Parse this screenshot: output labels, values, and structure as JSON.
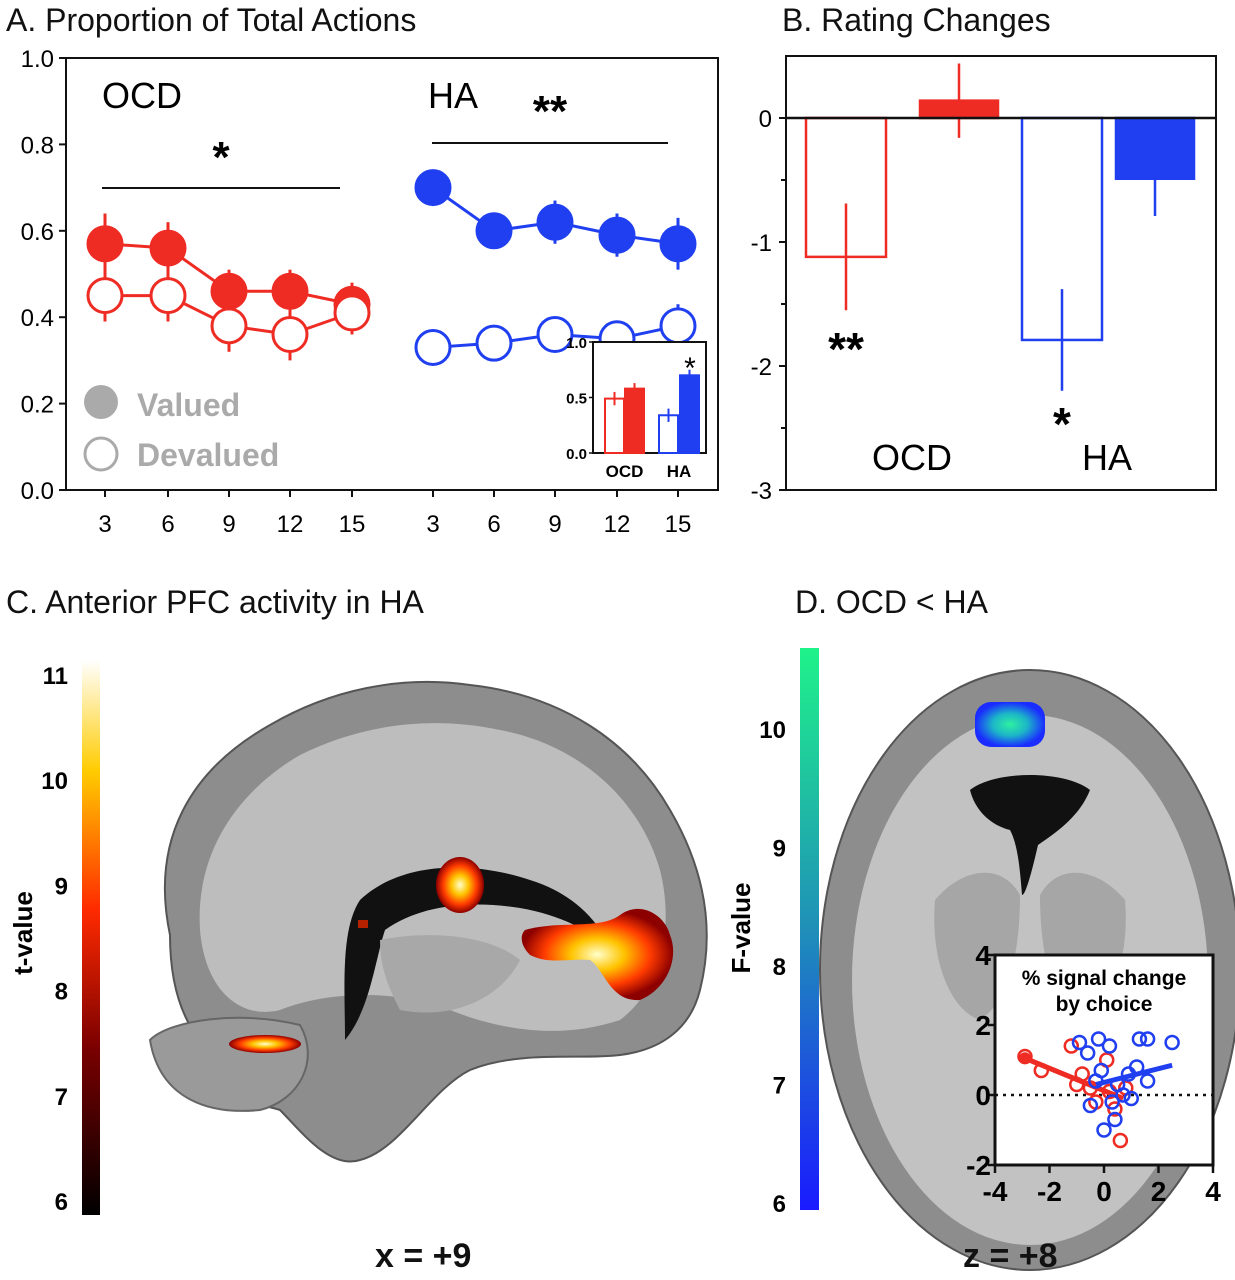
{
  "panel_titles": {
    "a": "A. Proportion of Total Actions",
    "b": "B. Rating Changes",
    "c": "C. Anterior PFC activity in HA",
    "d": "D. OCD < HA"
  },
  "colors": {
    "ocd": "#ee2c24",
    "ha": "#1f3ff0",
    "gray": "#aaaaaa"
  },
  "chart_data": [
    {
      "type": "line",
      "title": "A. Proportion of Total Actions",
      "groups": [
        {
          "label": "OCD",
          "significance": "*"
        },
        {
          "label": "HA",
          "significance": "**"
        }
      ],
      "x": [
        3,
        6,
        9,
        12,
        15
      ],
      "xticks": [
        "3",
        "6",
        "9",
        "12",
        "15"
      ],
      "ylim": [
        0,
        1
      ],
      "yticks": [
        "0.0",
        "0.2",
        "0.4",
        "0.6",
        "0.8",
        "1.0"
      ],
      "legend": {
        "valued": "Valued",
        "devalued": "Devalued",
        "placement": "bottom-left"
      },
      "series": [
        {
          "group": "OCD",
          "condition": "valued",
          "values": [
            0.57,
            0.56,
            0.46,
            0.46,
            0.43
          ],
          "err": [
            0.07,
            0.06,
            0.05,
            0.05,
            0.05
          ]
        },
        {
          "group": "OCD",
          "condition": "devalued",
          "values": [
            0.45,
            0.45,
            0.38,
            0.36,
            0.41
          ],
          "err": [
            0.06,
            0.06,
            0.06,
            0.06,
            0.05
          ]
        },
        {
          "group": "HA",
          "condition": "valued",
          "values": [
            0.7,
            0.6,
            0.62,
            0.59,
            0.57
          ],
          "err": [
            0.04,
            0.04,
            0.05,
            0.05,
            0.06
          ]
        },
        {
          "group": "HA",
          "condition": "devalued",
          "values": [
            0.33,
            0.34,
            0.36,
            0.35,
            0.38
          ],
          "err": [
            0.04,
            0.04,
            0.04,
            0.04,
            0.05
          ]
        }
      ],
      "inset": {
        "type": "bar",
        "categories": [
          "OCD",
          "HA"
        ],
        "ylim": [
          0,
          1
        ],
        "yticks": [
          "0.0",
          "0.5",
          "1.0"
        ],
        "series": [
          {
            "condition": "devalued",
            "values": [
              0.49,
              0.34
            ],
            "err": [
              0.06,
              0.06
            ]
          },
          {
            "condition": "valued",
            "values": [
              0.58,
              0.7
            ],
            "err": [
              0.05,
              0.05
            ]
          }
        ],
        "significance": "*"
      }
    },
    {
      "type": "bar",
      "title": "B. Rating Changes",
      "categories": [
        "OCD",
        "HA"
      ],
      "ylim": [
        -3,
        0.5
      ],
      "yticks": [
        "0",
        "-1",
        "-2",
        "-3"
      ],
      "series": [
        {
          "condition": "devalued",
          "values": [
            -1.12,
            -1.79
          ],
          "err": [
            0.43,
            0.41
          ],
          "significance": [
            "**",
            "*"
          ]
        },
        {
          "condition": "valued",
          "values": [
            0.14,
            -0.49
          ],
          "err": [
            0.3,
            0.3
          ]
        }
      ]
    },
    {
      "type": "heatmap",
      "title": "C. Anterior PFC activity in HA",
      "colorbar_label": "t-value",
      "colorbar_ticks": [
        "11",
        "10",
        "9",
        "8",
        "7",
        "6"
      ],
      "slice_label": "x = +9"
    },
    {
      "type": "heatmap",
      "title": "D. OCD < HA",
      "colorbar_label": "F-value",
      "colorbar_ticks": [
        "10",
        "9",
        "8",
        "7",
        "6"
      ],
      "slice_label": "z = +8",
      "inset": {
        "type": "scatter",
        "title_lines": [
          "% signal change",
          "by choice"
        ],
        "xlim": [
          -4,
          4
        ],
        "ylim": [
          -2,
          4
        ],
        "xticks": [
          "-4",
          "-2",
          "0",
          "2",
          "4"
        ],
        "yticks": [
          "4",
          "2",
          "0",
          "-2"
        ],
        "series": [
          {
            "group": "OCD",
            "points": [
              [
                -2.9,
                1.1
              ],
              [
                -2.3,
                0.7
              ],
              [
                -1.2,
                1.4
              ],
              [
                -0.8,
                0.6
              ],
              [
                -0.5,
                0.2
              ],
              [
                -0.3,
                -0.2
              ],
              [
                0.1,
                1.0
              ],
              [
                0.4,
                -0.4
              ],
              [
                0.6,
                -1.3
              ],
              [
                0.2,
                0.1
              ],
              [
                -1.0,
                0.3
              ],
              [
                0.8,
                0.2
              ]
            ],
            "fit": [
              [
                -2.9,
                1.05
              ],
              [
                0.7,
                -0.1
              ]
            ]
          },
          {
            "group": "HA",
            "points": [
              [
                -0.9,
                1.5
              ],
              [
                -0.6,
                1.2
              ],
              [
                -0.2,
                1.6
              ],
              [
                0.2,
                1.4
              ],
              [
                1.3,
                1.6
              ],
              [
                1.6,
                1.6
              ],
              [
                2.5,
                1.5
              ],
              [
                0.9,
                0.6
              ],
              [
                1.2,
                0.8
              ],
              [
                1.6,
                0.4
              ],
              [
                0.5,
                0.3
              ],
              [
                -0.1,
                0.7
              ],
              [
                0.3,
                -0.2
              ],
              [
                1.0,
                -0.1
              ],
              [
                0.4,
                -0.7
              ],
              [
                0.0,
                -1.0
              ],
              [
                -0.5,
                -0.3
              ],
              [
                -0.3,
                0.4
              ],
              [
                0.7,
                0.0
              ]
            ],
            "fit": [
              [
                -0.3,
                0.3
              ],
              [
                2.5,
                0.85
              ]
            ]
          }
        ]
      }
    }
  ]
}
